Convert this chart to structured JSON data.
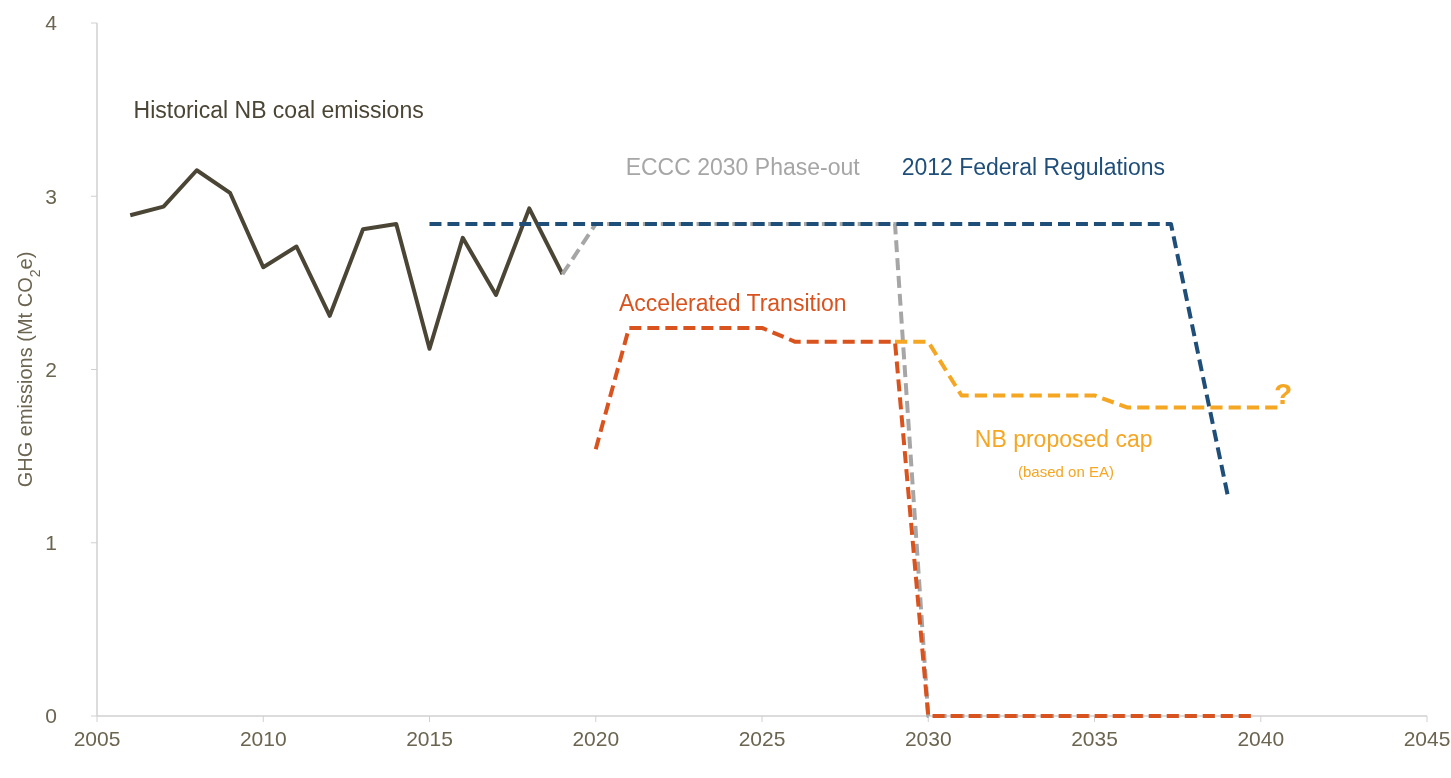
{
  "chart_data": {
    "type": "line",
    "ylabel": "GHG emissions (Mt CO$_{2}$e)",
    "xlim": [
      2005,
      2045
    ],
    "xticks": [
      2005,
      2010,
      2015,
      2020,
      2025,
      2030,
      2035,
      2040,
      2045
    ],
    "ylim": [
      0,
      4
    ],
    "yticks": [
      0,
      1,
      2,
      3,
      4
    ],
    "grid": false,
    "marker": "none",
    "series": [
      {
        "name": "Historical NB coal emissions",
        "color": "#4a4535",
        "line_style": "solid",
        "x": [
          2006,
          2007,
          2008,
          2009,
          2010,
          2011,
          2012,
          2013,
          2014,
          2015,
          2016,
          2017,
          2018,
          2019
        ],
        "values": [
          2.89,
          2.94,
          3.15,
          3.02,
          2.59,
          2.71,
          2.31,
          2.81,
          2.84,
          2.12,
          2.76,
          2.43,
          2.93,
          2.55
        ]
      },
      {
        "name": "ECCC 2030 Phase-out",
        "color": "#a6a6a6",
        "line_style": "dashed",
        "x": [
          2019,
          2020,
          2029,
          2030,
          2039.7
        ],
        "values": [
          2.55,
          2.84,
          2.84,
          0,
          0
        ]
      },
      {
        "name": "2012 Federal Regulations",
        "color": "#1f4e79",
        "line_style": "dashed",
        "x": [
          2015,
          2037.3,
          2039
        ],
        "values": [
          2.84,
          2.84,
          1.28
        ]
      },
      {
        "name": "NB proposed cap",
        "color": "#f5a623",
        "line_style": "dashed",
        "x": [
          2029,
          2030,
          2031,
          2035,
          2036,
          2040.5
        ],
        "values": [
          2.16,
          2.16,
          1.85,
          1.85,
          1.78,
          1.78
        ]
      },
      {
        "name": "Accelerated Transition",
        "color": "#d9531e",
        "line_style": "dashed",
        "x": [
          2020,
          2021,
          2025,
          2026,
          2029,
          2030,
          2039.7
        ],
        "values": [
          1.54,
          2.24,
          2.24,
          2.16,
          2.16,
          0,
          0
        ]
      }
    ],
    "annotations": [
      "(based on EA)",
      "?"
    ]
  }
}
